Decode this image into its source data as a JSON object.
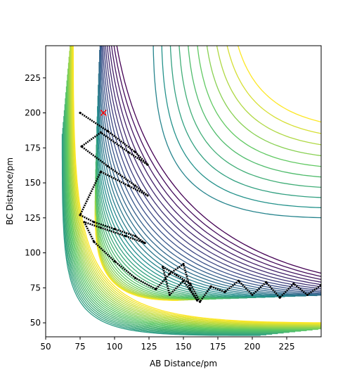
{
  "chart_data": {
    "type": "contour",
    "title": "",
    "xlabel": "AB Distance/pm",
    "ylabel": "BC Distance/pm",
    "xlim": [
      50,
      250
    ],
    "ylim": [
      40,
      248
    ],
    "xticks": [
      50,
      75,
      100,
      125,
      150,
      175,
      200,
      225
    ],
    "yticks": [
      50,
      75,
      100,
      125,
      150,
      175,
      200,
      225
    ],
    "colormap": [
      "#440154",
      "#3b528b",
      "#21908d",
      "#5dc863",
      "#fde725"
    ],
    "grid": false,
    "marker": {
      "shape": "x",
      "color": "#ff0000",
      "x": 92,
      "y": 200
    },
    "trajectory": {
      "color": "#000000",
      "x": [
        75,
        95,
        115,
        124,
        110,
        90,
        76,
        95,
        115,
        124,
        110,
        90,
        75,
        85,
        100,
        115,
        122,
        108,
        90,
        78,
        85,
        100,
        115,
        130,
        140,
        150,
        155,
        160,
        150,
        140,
        135,
        145,
        155,
        162,
        170,
        180,
        190,
        200,
        210,
        220,
        230,
        240,
        250
      ],
      "y": [
        200,
        187,
        172,
        163,
        172,
        186,
        176,
        162,
        148,
        141,
        148,
        158,
        127,
        122,
        117,
        112,
        107,
        112,
        118,
        122,
        108,
        94,
        82,
        74,
        85,
        92,
        74,
        66,
        80,
        70,
        90,
        84,
        78,
        65,
        76,
        72,
        80,
        70,
        79,
        68,
        78,
        70,
        77
      ]
    }
  }
}
